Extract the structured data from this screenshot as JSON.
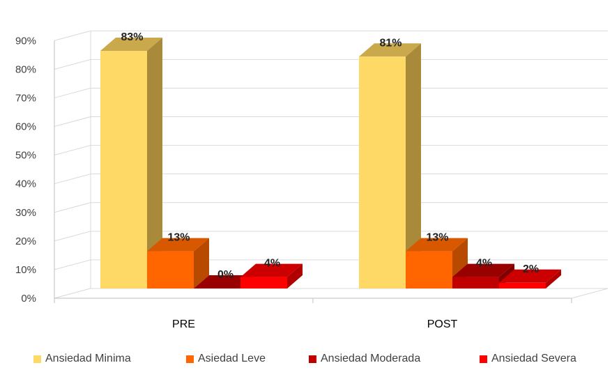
{
  "chart_data": {
    "type": "bar",
    "categories": [
      "PRE",
      "POST"
    ],
    "series": [
      {
        "name": "Ansiedad Minima",
        "values": [
          83,
          81
        ],
        "labels": [
          "83%",
          "81%"
        ],
        "color": "#FFD966",
        "side_color": "#A88A3A",
        "top_color": "#C9A94C"
      },
      {
        "name": "Asiedad Leve",
        "values": [
          13,
          13
        ],
        "labels": [
          "13%",
          "13%"
        ],
        "color": "#FF6600",
        "side_color": "#B84A00",
        "top_color": "#D85800"
      },
      {
        "name": "Ansiedad Moderada",
        "values": [
          0,
          4
        ],
        "labels": [
          "0%",
          "4%"
        ],
        "color": "#C00000",
        "side_color": "#800000",
        "top_color": "#990000"
      },
      {
        "name": "Ansiedad Severa",
        "values": [
          4,
          2
        ],
        "labels": [
          "4%",
          "2%"
        ],
        "color": "#FF0000",
        "side_color": "#B00000",
        "top_color": "#CC0000"
      }
    ],
    "ylim": [
      0,
      90
    ],
    "yticks": [
      "0%",
      "10%",
      "20%",
      "30%",
      "40%",
      "50%",
      "60%",
      "70%",
      "80%",
      "90%"
    ],
    "grid": true,
    "legend": "bottom",
    "style": "3d-clustered-column"
  }
}
